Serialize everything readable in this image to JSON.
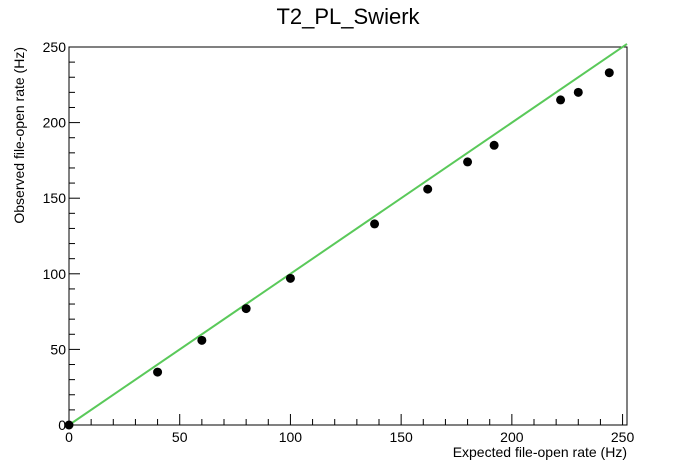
{
  "chart_data": {
    "type": "scatter",
    "title": "T2_PL_Swierk",
    "xlabel": "Expected file-open rate (Hz)",
    "ylabel": "Observed file-open rate (Hz)",
    "xlim": [
      0,
      252
    ],
    "ylim": [
      0,
      250
    ],
    "x_ticks": [
      0,
      50,
      100,
      150,
      200,
      250
    ],
    "y_ticks": [
      0,
      50,
      100,
      150,
      200,
      250
    ],
    "grid": false,
    "legend": "none",
    "series": [
      {
        "x": [
          0,
          40,
          60,
          80,
          100,
          138,
          162,
          180,
          192,
          222,
          230,
          244
        ],
        "y": [
          0,
          35,
          56,
          77,
          97,
          133,
          156,
          174,
          185,
          215,
          220,
          233
        ],
        "marker_color": "#000000"
      }
    ],
    "reference_line": {
      "x": [
        0,
        252
      ],
      "y": [
        0,
        252
      ],
      "color": "#5ac95a"
    }
  }
}
